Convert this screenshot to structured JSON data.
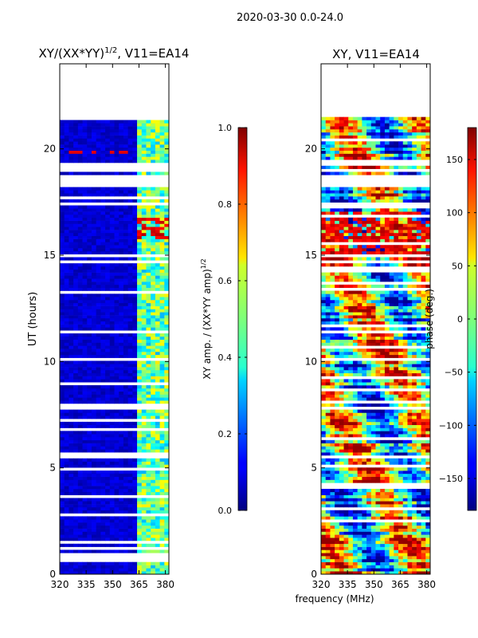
{
  "figure_title": "2020-03-30 0.0-24.0",
  "xlabel": "frequency (MHz)",
  "chart_data": [
    {
      "type": "heatmap",
      "title_main": "XY/(XX*YY)",
      "title_exp": "1/2",
      "title_tail": ", V11=EA14",
      "xlabel": "frequency (MHz)",
      "ylabel": "UT (hours)",
      "x_range": [
        320,
        382
      ],
      "y_range": [
        0,
        24
      ],
      "x_ticks": [
        320,
        335,
        350,
        365,
        380
      ],
      "y_ticks": [
        0,
        5,
        10,
        15,
        20
      ],
      "colorbar": {
        "label_main": "XY amp. / (XX*YY amp)",
        "label_exp": "1/2",
        "range": [
          0.0,
          1.0
        ],
        "ticks": [
          "0.0",
          "0.2",
          "0.4",
          "0.6",
          "0.8",
          "1.0"
        ],
        "tick_values": [
          0.0,
          0.2,
          0.4,
          0.6,
          0.8,
          1.0
        ]
      },
      "data_end_hour": 21.5,
      "data_gaps_hours": [
        [
          0.65,
          1.0
        ],
        [
          1.15,
          1.25
        ],
        [
          18.2,
          18.8
        ],
        [
          17.35,
          17.5
        ],
        [
          7.8,
          7.95
        ],
        [
          14.95,
          15.1
        ],
        [
          19.25,
          19.4
        ],
        [
          11.3,
          11.4
        ]
      ],
      "features": [
        {
          "band_mhz": [
            363,
            382
          ],
          "value": 0.5,
          "note": "elevated amplitude across hours"
        },
        {
          "band_mhz": [
            363,
            382
          ],
          "hours": [
            15.8,
            16.8
          ],
          "value": 0.9,
          "note": "high amplitude spots"
        },
        {
          "band_mhz": [
            320,
            363
          ],
          "value": 0.05,
          "note": "low amplitude"
        }
      ]
    },
    {
      "type": "heatmap",
      "title_main": "XY, V11=EA14",
      "xlabel": "frequency (MHz)",
      "ylabel": "",
      "x_range": [
        320,
        382
      ],
      "y_range": [
        0,
        24
      ],
      "x_ticks": [
        320,
        335,
        350,
        365,
        380
      ],
      "y_ticks": [
        0,
        5,
        10,
        15,
        20
      ],
      "colorbar": {
        "label_main": "phase (deg.)",
        "range": [
          -180,
          180
        ],
        "ticks": [
          "−150",
          "−100",
          "−50",
          "0",
          "50",
          "100",
          "150"
        ],
        "tick_values": [
          -150,
          -100,
          -50,
          0,
          50,
          100,
          150
        ]
      },
      "data_end_hour": 21.5,
      "data_gaps_hours": [
        [
          18.2,
          18.8
        ],
        [
          17.35,
          17.5
        ],
        [
          7.8,
          7.95
        ],
        [
          14.95,
          15.1
        ],
        [
          19.25,
          19.4
        ],
        [
          11.3,
          11.4
        ]
      ]
    }
  ]
}
